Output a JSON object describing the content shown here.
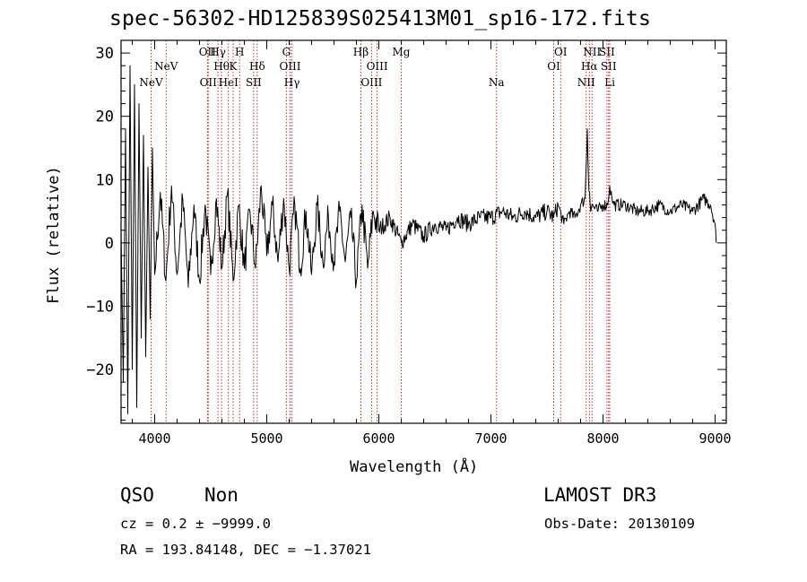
{
  "chart_data": {
    "type": "line",
    "title": "spec-56302-HD125839S025413M01_sp16-172.fits",
    "xlabel": "Wavelength (Å)",
    "ylabel": "Flux (relative)",
    "xlim": [
      3700,
      9100
    ],
    "ylim": [
      -28.5,
      32
    ],
    "x_ticks": [
      4000,
      5000,
      6000,
      7000,
      8000,
      9000
    ],
    "x_tick_labels": [
      "4000",
      "5000",
      "6000",
      "7000",
      "8000",
      "9000"
    ],
    "y_ticks": [
      -20,
      -10,
      0,
      10,
      20,
      30
    ],
    "y_tick_labels": [
      "−20",
      "−10",
      "0",
      "10",
      "20",
      "30"
    ],
    "series": [
      {
        "name": "flux",
        "x": [
          3700,
          3720,
          3740,
          3760,
          3780,
          3800,
          3820,
          3840,
          3860,
          3880,
          3900,
          3920,
          3940,
          3960,
          3980,
          4000,
          4050,
          4100,
          4150,
          4200,
          4250,
          4300,
          4350,
          4400,
          4450,
          4500,
          4550,
          4600,
          4650,
          4700,
          4750,
          4800,
          4850,
          4900,
          4950,
          5000,
          5050,
          5100,
          5150,
          5200,
          5250,
          5300,
          5350,
          5400,
          5450,
          5500,
          5550,
          5600,
          5650,
          5700,
          5750,
          5800,
          5850,
          5900,
          5950,
          6000,
          6100,
          6200,
          6300,
          6400,
          6500,
          6600,
          6700,
          6800,
          6900,
          7000,
          7100,
          7200,
          7300,
          7400,
          7500,
          7560,
          7600,
          7650,
          7700,
          7750,
          7800,
          7840,
          7860,
          7870,
          7880,
          7890,
          7900,
          7950,
          8000,
          8040,
          8060,
          8080,
          8100,
          8200,
          8300,
          8400,
          8500,
          8600,
          8700,
          8800,
          8900,
          8960,
          9000,
          9010
        ],
        "y": [
          2,
          -22,
          18,
          -27,
          28,
          -20,
          25,
          -26,
          22,
          -15,
          17,
          -18,
          12,
          -12,
          15,
          -5,
          8,
          -6,
          9,
          -5,
          7,
          -7,
          6,
          -6,
          6,
          -5,
          7,
          -4,
          8,
          -6,
          6,
          -4,
          5,
          -4,
          9,
          -2,
          6,
          -3,
          7,
          -4,
          6,
          -4,
          5,
          -5,
          6,
          -3,
          4,
          -3,
          5,
          -3,
          4,
          -6,
          6,
          -4,
          5,
          2,
          4,
          0,
          3,
          1,
          3,
          2,
          4,
          3,
          4,
          4,
          5,
          4,
          5,
          4,
          5,
          4,
          6,
          3,
          5,
          4,
          6,
          7,
          18,
          10,
          8,
          5,
          6,
          5,
          6,
          6,
          9,
          7,
          6,
          6,
          5,
          5,
          6,
          5,
          6,
          5,
          7,
          6,
          3,
          0
        ]
      }
    ],
    "lines": [
      {
        "name": "NeV",
        "wavelength": 3968,
        "label_row": 3
      },
      {
        "name": "NeV",
        "wavelength": 4102,
        "label_row": 2
      },
      {
        "name": "OII",
        "wavelength": 4471,
        "label_row": 1
      },
      {
        "name": "OII",
        "wavelength": 4478,
        "label_row": 3
      },
      {
        "name": "Hγ",
        "wavelength": 4565,
        "label_row": 1
      },
      {
        "name": "Hθ",
        "wavelength": 4597,
        "label_row": 2
      },
      {
        "name": "HeI",
        "wavelength": 4658,
        "label_row": 3
      },
      {
        "name": "K",
        "wavelength": 4700,
        "label_row": 2
      },
      {
        "name": "H",
        "wavelength": 4758,
        "label_row": 1
      },
      {
        "name": "SII",
        "wavelength": 4883,
        "label_row": 3
      },
      {
        "name": "Hδ",
        "wavelength": 4915,
        "label_row": 2
      },
      {
        "name": "G",
        "wavelength": 5175,
        "label_row": 1
      },
      {
        "name": "OIII",
        "wavelength": 5208,
        "label_row": 2
      },
      {
        "name": "Hγ",
        "wavelength": 5225,
        "label_row": 3
      },
      {
        "name": "Hβ",
        "wavelength": 5840,
        "label_row": 1
      },
      {
        "name": "OIII",
        "wavelength": 5935,
        "label_row": 3
      },
      {
        "name": "OIII",
        "wavelength": 5985,
        "label_row": 2
      },
      {
        "name": "Mg",
        "wavelength": 6200,
        "label_row": 1
      },
      {
        "name": "Na",
        "wavelength": 7050,
        "label_row": 3
      },
      {
        "name": "OI",
        "wavelength": 7560,
        "label_row": 2
      },
      {
        "name": "OI",
        "wavelength": 7622,
        "label_row": 1
      },
      {
        "name": "NII",
        "wavelength": 7850,
        "label_row": 3
      },
      {
        "name": "Hα",
        "wavelength": 7878,
        "label_row": 2
      },
      {
        "name": "NII",
        "wavelength": 7902,
        "label_row": 1
      },
      {
        "name": "SII",
        "wavelength": 8035,
        "label_row": 1
      },
      {
        "name": "SII",
        "wavelength": 8050,
        "label_row": 2
      },
      {
        "name": "Li",
        "wavelength": 8060,
        "label_row": 3
      }
    ]
  },
  "info": {
    "class_text": "QSO",
    "subclass_text": "Non",
    "survey_text": "LAMOST DR3",
    "cz_text": "cz = 0.2 ± −9999.0",
    "obsdate_text": "Obs-Date: 20130109",
    "radec_text": "RA = 193.84148, DEC =  −1.37021"
  },
  "colors": {
    "line_marker": "#b22222",
    "spectrum": "#000000",
    "axes": "#000000"
  }
}
